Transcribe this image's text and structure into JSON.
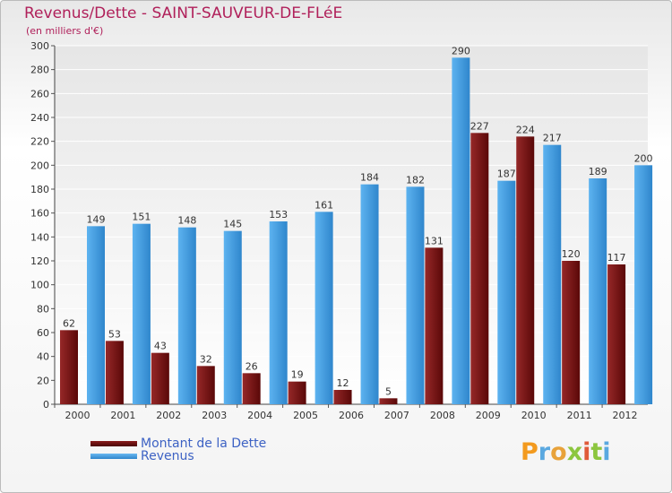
{
  "title": "Revenus/Dette - SAINT-SAUVEUR-DE-FLéE",
  "subtitle": "(en milliers d'€)",
  "logo": "Proxiti",
  "colors": {
    "debt": "#7a1a1a",
    "revenue": "#4aa3e6",
    "title": "#b0205a",
    "legend_text": "#3d62c4"
  },
  "legend": [
    {
      "label": "Montant de la Dette",
      "color": "#6b0c0c"
    },
    {
      "label": "Revenus",
      "color": "#4aa3e6"
    }
  ],
  "chart_data": {
    "type": "bar",
    "title": "Revenus/Dette - SAINT-SAUVEUR-DE-FLéE",
    "ylabel": "(en milliers d'€)",
    "xlabel": "",
    "ylim": [
      0,
      300
    ],
    "ytick_step": 20,
    "grid": true,
    "legend_position": "bottom-left",
    "categories": [
      "2000",
      "2001",
      "2002",
      "2003",
      "2004",
      "2005",
      "2006",
      "2007",
      "2008",
      "2009",
      "2010",
      "2011",
      "2012"
    ],
    "series": [
      {
        "name": "Montant de la Dette",
        "values": [
          62,
          53,
          43,
          32,
          26,
          19,
          12,
          5,
          131,
          227,
          224,
          120,
          117
        ]
      },
      {
        "name": "Revenus",
        "values": [
          149,
          151,
          148,
          145,
          153,
          161,
          184,
          182,
          290,
          187,
          217,
          189,
          200
        ]
      }
    ]
  }
}
